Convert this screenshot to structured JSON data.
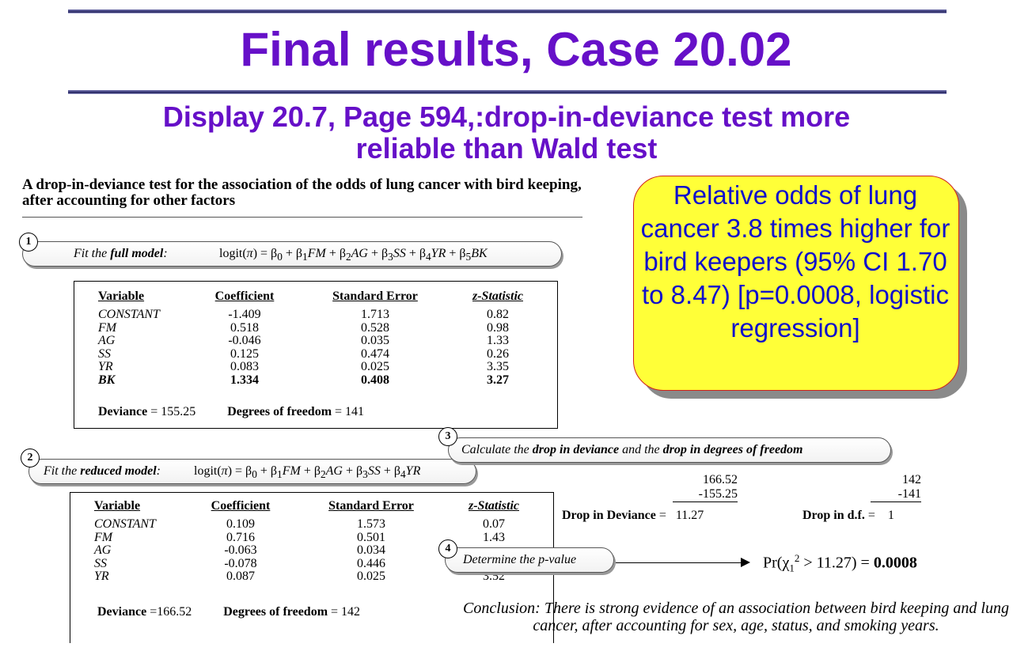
{
  "title": "Final results, Case 20.02",
  "subtitle": "Display 20.7, Page 594,:drop-in-deviance test more reliable than Wald test",
  "intro": "A drop-in-deviance test for the association of the odds of lung cancer with bird keeping, after accounting for other factors",
  "steps": {
    "s1": {
      "num": "1",
      "prefix": "Fit the ",
      "bold": "full model",
      "suffix": ":"
    },
    "s2": {
      "num": "2",
      "prefix": "Fit the ",
      "bold": "reduced model",
      "suffix": ":"
    },
    "s3": {
      "num": "3",
      "p1": "Calculate the ",
      "b1": "drop in deviance",
      "p2": " and the ",
      "b2": "drop in degrees of freedom"
    },
    "s4": {
      "num": "4",
      "label": "Determine the p-value"
    }
  },
  "full_model": {
    "headers": [
      "Variable",
      "Coefficient",
      "Standard Error",
      "z-Statistic"
    ],
    "rows": [
      {
        "v": "CONSTANT",
        "c": "-1.409",
        "se": "1.713",
        "z": "0.82"
      },
      {
        "v": "FM",
        "c": "0.518",
        "se": "0.528",
        "z": "0.98"
      },
      {
        "v": "AG",
        "c": "-0.046",
        "se": "0.035",
        "z": "1.33"
      },
      {
        "v": "SS",
        "c": "0.125",
        "se": "0.474",
        "z": "0.26"
      },
      {
        "v": "YR",
        "c": "0.083",
        "se": "0.025",
        "z": "3.35"
      },
      {
        "v": "BK",
        "c": "1.334",
        "se": "0.408",
        "z": "3.27"
      }
    ],
    "deviance_label": "Deviance",
    "deviance": "= 155.25",
    "df_label": "Degrees of freedom",
    "df": "= 141"
  },
  "reduced_model": {
    "headers": [
      "Variable",
      "Coefficient",
      "Standard Error",
      "z-Statistic"
    ],
    "rows": [
      {
        "v": "CONSTANT",
        "c": "0.109",
        "se": "1.573",
        "z": "0.07"
      },
      {
        "v": "FM",
        "c": "0.716",
        "se": "0.501",
        "z": "1.43"
      },
      {
        "v": "AG",
        "c": "-0.063",
        "se": "0.034",
        "z": ""
      },
      {
        "v": "SS",
        "c": "-0.078",
        "se": "0.446",
        "z": ""
      },
      {
        "v": "YR",
        "c": "0.087",
        "se": "0.025",
        "z": "3.52"
      }
    ],
    "deviance_label": "Deviance",
    "deviance": "=166.52",
    "df_label": "Degrees of freedom",
    "df": "= 142"
  },
  "callout": "Relative odds of lung cancer 3.8 times higher for bird keepers (95% CI 1.70 to 8.47) [p=0.0008, logistic regression]",
  "calc": {
    "dev_a": "166.52",
    "dev_b": "-155.25",
    "dev_label": "Drop in Deviance",
    "dev_result": "=   11.27",
    "df_a": "142",
    "df_b": "-141",
    "df_label": "Drop in  d.f.",
    "df_result": "=    1"
  },
  "pvalue": {
    "result": "0.0008"
  },
  "conclusion": "Conclusion: There is strong evidence of an association between bird keeping and lung cancer, after accounting for sex, age, status, and smoking years."
}
